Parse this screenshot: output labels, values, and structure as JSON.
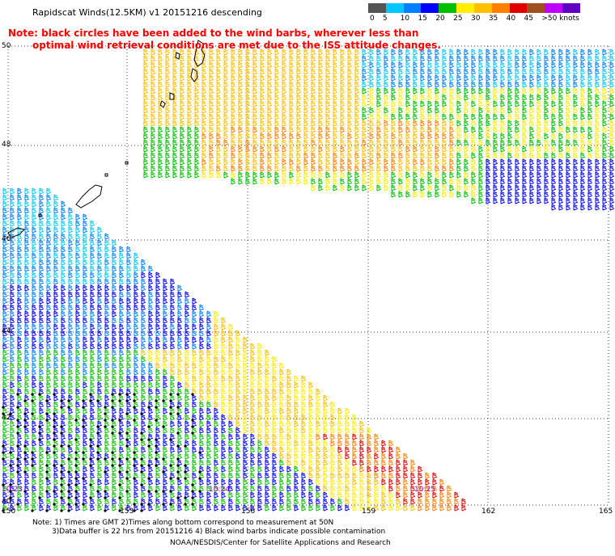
{
  "title": "Rapidscat Winds(12.5KM) v1 20151216 descending",
  "note": {
    "line1": "Note: black circles have been added to the wind barbs, wherever less than",
    "line2": "optimal wind retrieval conditions are met due to the ISS attitude changes."
  },
  "legend": {
    "colors": [
      "#555555",
      "#00c8ff",
      "#0080ff",
      "#0000ff",
      "#00c000",
      "#ffee00",
      "#ffc000",
      "#ff8000",
      "#e00000",
      "#a0501e",
      "#c000ff",
      "#6000c0"
    ],
    "labels": [
      "0",
      "5",
      "10",
      "15",
      "20",
      "25",
      "30",
      "35",
      "40",
      "45",
      ">50 knots"
    ]
  },
  "axes": {
    "lat_labels": [
      "50",
      "48",
      "46",
      "44",
      "42",
      "40"
    ],
    "lon_labels": [
      "150",
      "153",
      "156",
      "159",
      "162",
      "165"
    ]
  },
  "times": [
    "10:23",
    "10:24",
    "10:25"
  ],
  "footnotes": {
    "line1": "Note: 1) Times are GMT 2)Times along bottom correspond to measurement at 50N",
    "line2": "3)Data buffer is 22 hrs from 20151216 4) Black wind barbs indicate possible contamination",
    "credit": "NOAA/NESDIS/Center for Satellite Applications and Research"
  }
}
